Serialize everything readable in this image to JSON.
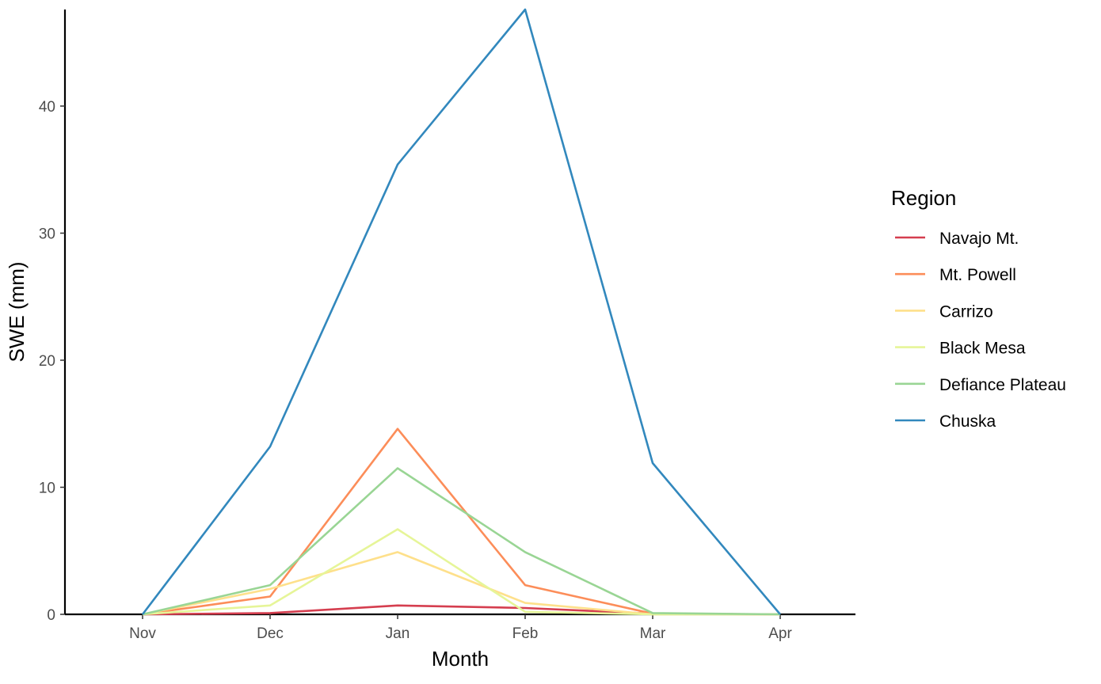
{
  "chart_data": {
    "type": "line",
    "xlabel": "Month",
    "ylabel": "SWE (mm)",
    "categories": [
      "Nov",
      "Dec",
      "Jan",
      "Feb",
      "Mar",
      "Apr"
    ],
    "y_ticks": [
      0,
      10,
      20,
      30,
      40
    ],
    "ylim": [
      0,
      47.6
    ],
    "grid": false,
    "legend": {
      "title": "Region",
      "position": "right"
    },
    "series": [
      {
        "name": "Navajo Mt.",
        "color": "#d53e4f",
        "values": [
          0,
          0.1,
          0.7,
          0.5,
          0.05,
          0
        ]
      },
      {
        "name": "Mt. Powell",
        "color": "#fc8d59",
        "values": [
          0,
          1.4,
          14.6,
          2.3,
          0.05,
          0
        ]
      },
      {
        "name": "Carrizo",
        "color": "#fee08b",
        "values": [
          0,
          2.0,
          4.9,
          0.9,
          0,
          0
        ]
      },
      {
        "name": "Black Mesa",
        "color": "#e6f598",
        "values": [
          0,
          0.7,
          6.7,
          0.2,
          0,
          0
        ]
      },
      {
        "name": "Defiance Plateau",
        "color": "#99d594",
        "values": [
          0,
          2.3,
          11.5,
          4.9,
          0.1,
          0
        ]
      },
      {
        "name": "Chuska",
        "color": "#3288bd",
        "values": [
          0,
          13.2,
          35.4,
          47.6,
          11.9,
          0
        ]
      }
    ]
  }
}
